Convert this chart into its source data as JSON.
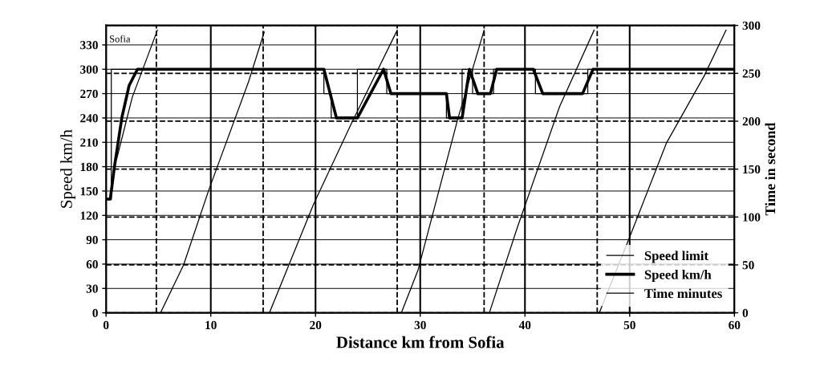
{
  "chart_data": {
    "type": "line",
    "xlabel": "Distance km from Sofia",
    "ylabel": "Speed km/h",
    "y2label": "Time in second",
    "xlim": [
      0,
      60
    ],
    "xticks": [
      0,
      10,
      20,
      30,
      40,
      50,
      60
    ],
    "ylim": [
      0,
      354
    ],
    "yticks": [
      0,
      30,
      60,
      90,
      120,
      150,
      180,
      210,
      240,
      270,
      300,
      330
    ],
    "y2lim": [
      0,
      300
    ],
    "y2ticks": [
      0,
      50,
      100,
      150,
      200,
      250,
      300
    ],
    "grid": true,
    "legend": "bottom right",
    "marker": "none",
    "annotations": [
      "Sofia"
    ],
    "ref_lines": [
      {
        "axis": "x",
        "value": 4.8,
        "line_style": "dashed",
        "color": "#000000"
      },
      {
        "axis": "x",
        "value": 15,
        "line_style": "dashed",
        "color": "#000000"
      },
      {
        "axis": "x",
        "value": 27.8,
        "line_style": "dashed",
        "color": "#000000"
      },
      {
        "axis": "x",
        "value": 36.1,
        "line_style": "dashed",
        "color": "#000000"
      },
      {
        "axis": "x",
        "value": 46.9,
        "line_style": "dashed",
        "color": "#000000"
      }
    ],
    "series": [
      {
        "name": "Speed limit",
        "color": "#000000",
        "line_style": "solid",
        "x": [
          0,
          0,
          0.5,
          0.5,
          20.8,
          20.8,
          21.5,
          21.5,
          24,
          24,
          26.8,
          26.8,
          32.5,
          32.5,
          34,
          34,
          35,
          35,
          37,
          37,
          41,
          41,
          46,
          46,
          60
        ],
        "values": [
          0,
          140,
          140,
          300,
          300,
          270,
          270,
          240,
          240,
          300,
          300,
          270,
          270,
          240,
          240,
          300,
          300,
          270,
          270,
          300,
          300,
          270,
          270,
          300,
          300
        ]
      },
      {
        "name": "Speed km/h",
        "color": "#000000",
        "line_style": "solid",
        "x": [
          0,
          0.4,
          0.8,
          1.5,
          2.2,
          3,
          20.8,
          22,
          24,
          26.5,
          27.2,
          32.5,
          32.8,
          34,
          34.7,
          35.5,
          36.7,
          37.3,
          40.8,
          41.7,
          45.5,
          46.5,
          60
        ],
        "values": [
          140,
          140,
          180,
          240,
          280,
          300,
          300,
          240,
          240,
          300,
          270,
          270,
          240,
          240,
          300,
          270,
          270,
          300,
          300,
          270,
          270,
          300,
          300
        ]
      },
      {
        "name": "Time minutes",
        "color": "#000000",
        "axis": "y2",
        "line_style": "solid",
        "x": [
          1.0,
          2.5,
          4.9,
          null,
          5.2,
          7.4,
          9.8,
          13.6,
          15.1,
          null,
          15.6,
          19.8,
          23.4,
          27.8,
          null,
          28.2,
          29.8,
          33.6,
          36.1,
          null,
          36.6,
          39.3,
          43.3,
          46.6,
          null,
          47.1,
          50,
          53.5,
          57.1,
          59.2
        ],
        "values": [
          160,
          225,
          295,
          null,
          0,
          50,
          128,
          241,
          293,
          null,
          0,
          113,
          197,
          295,
          null,
          0,
          45,
          203,
          295,
          null,
          0,
          90,
          215,
          295,
          null,
          0,
          79,
          177,
          247,
          295
        ]
      }
    ]
  }
}
